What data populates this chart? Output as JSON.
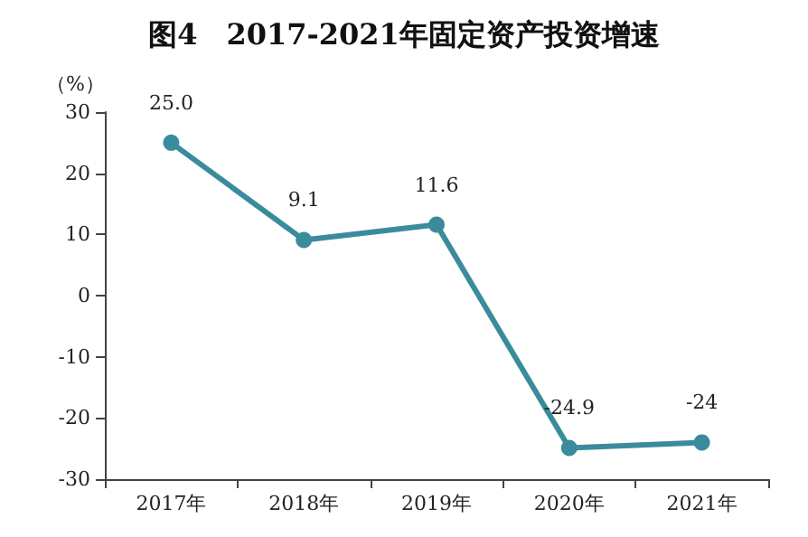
{
  "chart_data": {
    "type": "line",
    "title": "图4　2017-2021年固定资产投资增速",
    "ylabel": "（%）",
    "categories": [
      "2017年",
      "2018年",
      "2019年",
      "2020年",
      "2021年"
    ],
    "series": [
      {
        "color": "#3a8c9c",
        "values": [
          25.0,
          9.1,
          11.6,
          -24.9,
          -24
        ],
        "value_labels": [
          "25.0",
          "9.1",
          "11.6",
          "-24.9",
          "-24"
        ]
      }
    ],
    "ylim": [
      -30,
      30
    ],
    "yticks": [
      -30,
      -20,
      -10,
      0,
      10,
      20,
      30
    ],
    "grid": false,
    "marker": "circle",
    "line_style": "solid"
  }
}
